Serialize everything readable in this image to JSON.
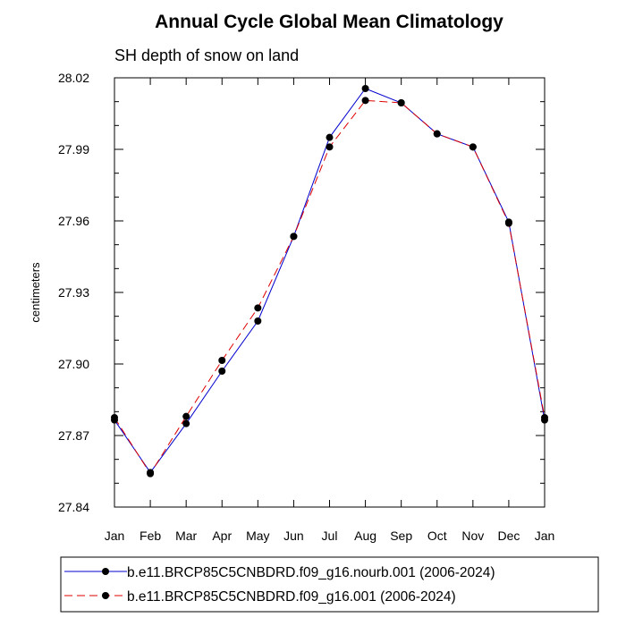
{
  "chart_data": {
    "type": "line",
    "title": "Annual Cycle Global Mean Climatology",
    "subtitle": "SH depth of snow on land",
    "xlabel": "",
    "ylabel": "centimeters",
    "categories": [
      "Jan",
      "Feb",
      "Mar",
      "Apr",
      "May",
      "Jun",
      "Jul",
      "Aug",
      "Sep",
      "Oct",
      "Nov",
      "Dec",
      "Jan"
    ],
    "ylim": [
      27.84,
      28.02
    ],
    "yticks": [
      "27.84",
      "27.87",
      "27.90",
      "27.93",
      "27.96",
      "27.99",
      "28.02"
    ],
    "grid": false,
    "legend_position": "bottom",
    "series": [
      {
        "name": "b.e11.BRCP85C5CNBDRD.f09_g16.nourb.001 (2006-2024)",
        "color": "#0000cc",
        "line_style": "solid",
        "values": [
          27.8765,
          27.8545,
          27.875,
          27.897,
          27.918,
          27.9535,
          27.995,
          28.0155,
          28.0095,
          27.9965,
          27.991,
          27.9595,
          27.8765
        ]
      },
      {
        "name": "b.e11.BRCP85C5CNBDRD.f09_g16.001 (2006-2024)",
        "color": "#dd0000",
        "line_style": "dashed",
        "values": [
          27.8775,
          27.854,
          27.878,
          27.9015,
          27.9235,
          27.9535,
          27.991,
          28.0105,
          28.0095,
          27.9965,
          27.991,
          27.959,
          27.8775
        ]
      }
    ]
  }
}
